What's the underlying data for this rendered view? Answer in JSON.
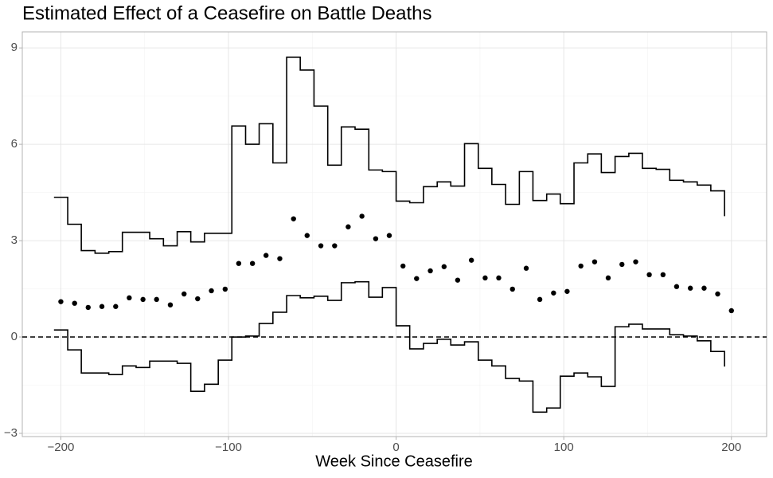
{
  "chart_data": {
    "type": "scatter",
    "title": "Estimated Effect of a Ceasefire on Battle Deaths",
    "x_label": "Week Since Ceasefire",
    "x": [
      -200,
      -191.8,
      -183.7,
      -175.5,
      -167.3,
      -159.2,
      -151.0,
      -142.9,
      -134.7,
      -126.5,
      -118.4,
      -110.2,
      -102.0,
      -93.9,
      -85.7,
      -77.6,
      -69.4,
      -61.2,
      -53.1,
      -44.9,
      -36.7,
      -28.6,
      -20.4,
      -12.2,
      -4.1,
      4.1,
      12.2,
      20.4,
      28.6,
      36.7,
      44.9,
      53.1,
      61.2,
      69.4,
      77.6,
      85.7,
      93.9,
      102.0,
      110.2,
      118.4,
      126.5,
      134.7,
      142.9,
      151.0,
      159.2,
      167.3,
      175.5,
      183.7,
      191.8,
      200
    ],
    "series": [
      {
        "style": "points",
        "color": "#000000",
        "values": [
          1.1,
          1.05,
          0.92,
          0.95,
          0.95,
          1.22,
          1.17,
          1.17,
          1.0,
          1.34,
          1.19,
          1.44,
          1.49,
          2.29,
          2.29,
          2.54,
          2.44,
          3.68,
          3.16,
          2.84,
          2.84,
          3.43,
          3.76,
          3.06,
          3.16,
          2.21,
          1.82,
          2.06,
          2.19,
          1.77,
          2.39,
          1.84,
          1.84,
          1.49,
          2.14,
          1.17,
          1.37,
          1.42,
          2.21,
          2.34,
          1.84,
          2.26,
          2.34,
          1.94,
          1.94,
          1.57,
          1.52,
          1.52,
          1.34,
          0.82
        ]
      },
      {
        "style": "step",
        "color": "#000000",
        "values": [
          4.35,
          3.51,
          2.69,
          2.61,
          2.66,
          3.26,
          3.26,
          3.06,
          2.84,
          3.28,
          2.96,
          3.23,
          3.23,
          6.57,
          6.0,
          6.64,
          5.42,
          8.71,
          8.31,
          7.19,
          5.35,
          6.54,
          6.47,
          5.2,
          5.15,
          4.23,
          4.18,
          4.68,
          4.83,
          4.7,
          6.02,
          5.25,
          4.75,
          4.13,
          5.15,
          4.25,
          4.45,
          4.15,
          5.42,
          5.7,
          5.12,
          5.62,
          5.72,
          5.25,
          5.22,
          4.88,
          4.83,
          4.73,
          4.55,
          3.76
        ]
      },
      {
        "style": "step",
        "color": "#000000",
        "values": [
          0.22,
          -0.4,
          -1.12,
          -1.12,
          -1.17,
          -0.9,
          -0.95,
          -0.75,
          -0.75,
          -0.82,
          -1.69,
          -1.47,
          -0.72,
          0.0,
          0.03,
          0.42,
          0.77,
          1.29,
          1.22,
          1.27,
          1.14,
          1.69,
          1.72,
          1.24,
          1.54,
          0.35,
          -0.37,
          -0.2,
          -0.07,
          -0.25,
          -0.15,
          -0.72,
          -0.9,
          -1.29,
          -1.37,
          -2.34,
          -2.21,
          -1.22,
          -1.12,
          -1.24,
          -1.54,
          0.32,
          0.4,
          0.25,
          0.25,
          0.07,
          0.03,
          -0.12,
          -0.45,
          -0.92
        ]
      }
    ],
    "hline": 0,
    "xlim": [
      -223,
      221
    ],
    "ylim": [
      -3.1,
      9.5
    ],
    "xticks": [
      {
        "value": -200,
        "label": "−200"
      },
      {
        "value": -100,
        "label": "−100"
      },
      0,
      100,
      200
    ],
    "yticks": [
      {
        "value": -3,
        "label": "−3"
      },
      0,
      3,
      6,
      9
    ],
    "xminor": [
      -150,
      -50,
      50,
      150
    ],
    "yminor": [
      -1.5,
      1.5,
      4.5,
      7.5
    ],
    "grid": true
  }
}
